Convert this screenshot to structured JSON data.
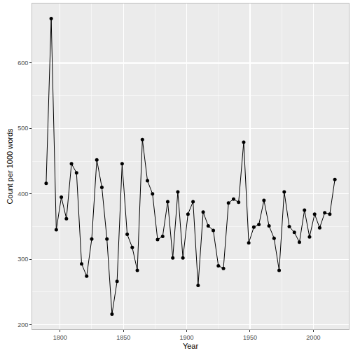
{
  "chart_data": {
    "type": "line",
    "x_label": "Year",
    "y_label": "Count per 1000 words",
    "x": [
      1789,
      1793,
      1797,
      1801,
      1805,
      1809,
      1813,
      1817,
      1821,
      1825,
      1829,
      1833,
      1837,
      1841,
      1845,
      1849,
      1853,
      1857,
      1861,
      1865,
      1869,
      1873,
      1877,
      1881,
      1885,
      1889,
      1893,
      1897,
      1901,
      1905,
      1909,
      1913,
      1917,
      1921,
      1925,
      1929,
      1933,
      1937,
      1941,
      1945,
      1949,
      1953,
      1957,
      1961,
      1965,
      1969,
      1973,
      1977,
      1981,
      1985,
      1989,
      1993,
      1997,
      2001,
      2005,
      2009,
      2013,
      2017
    ],
    "values": [
      416,
      668,
      345,
      395,
      362,
      446,
      432,
      293,
      274,
      331,
      452,
      410,
      331,
      216,
      266,
      446,
      338,
      318,
      283,
      483,
      420,
      400,
      330,
      335,
      388,
      302,
      403,
      302,
      369,
      388,
      260,
      372,
      351,
      344,
      290,
      286,
      386,
      392,
      387,
      479,
      325,
      349,
      353,
      390,
      351,
      332,
      283,
      403,
      350,
      341,
      326,
      375,
      334,
      369,
      348,
      371,
      369,
      422
    ],
    "xlim": [
      1778,
      2028
    ],
    "ylim": [
      193,
      691
    ],
    "xticks": [
      1800,
      1850,
      1900,
      1950,
      2000
    ],
    "yticks": [
      200,
      300,
      400,
      500,
      600
    ],
    "grid": true,
    "color": "#000000",
    "marker": "circle",
    "line_style": "solid"
  }
}
